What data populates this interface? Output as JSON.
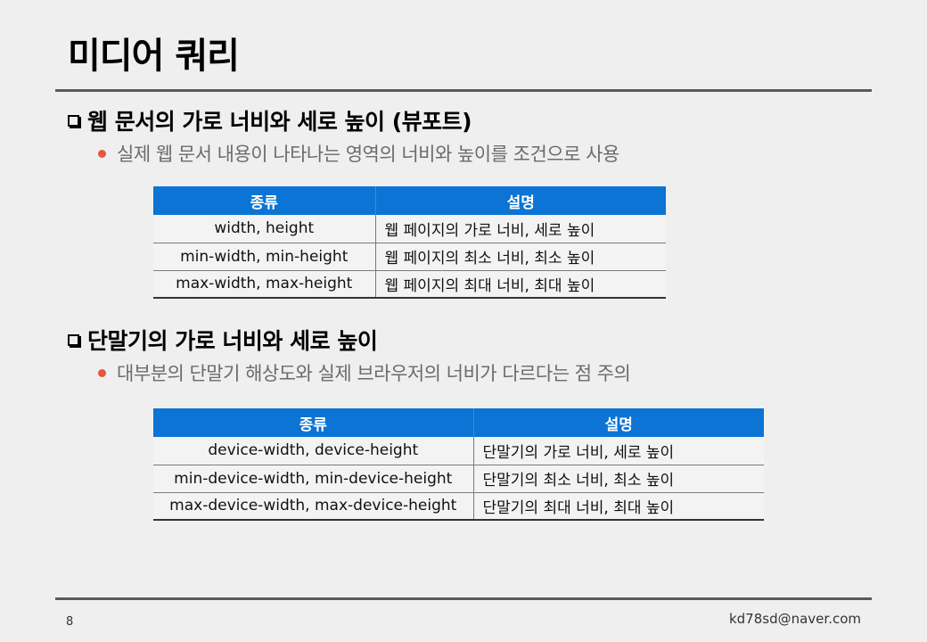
{
  "title": "미디어 쿼리",
  "section1": {
    "heading": "웹 문서의 가로 너비와 세로 높이 (뷰포트)",
    "bullet": "실제 웹 문서 내용이 나타나는 영역의 너비와 높이를 조건으로 사용",
    "table": {
      "headers": [
        "종류",
        "설명"
      ],
      "rows": [
        [
          "width, height",
          "웹 페이지의 가로 너비, 세로 높이"
        ],
        [
          "min-width, min-height",
          "웹 페이지의 최소 너비, 최소 높이"
        ],
        [
          "max-width, max-height",
          "웹 페이지의 최대 너비, 최대 높이"
        ]
      ]
    }
  },
  "section2": {
    "heading": "단말기의 가로 너비와 세로 높이",
    "bullet": "대부분의 단말기 해상도와 실제 브라우저의 너비가 다르다는 점 주의",
    "table": {
      "headers": [
        "종류",
        "설명"
      ],
      "rows": [
        [
          "device-width, device-height",
          "단말기의 가로 너비, 세로 높이"
        ],
        [
          "min-device-width, min-device-height",
          "단말기의 최소 너비, 최소 높이"
        ],
        [
          "max-device-width, max-device-height",
          "단말기의 최대 너비, 최대 높이"
        ]
      ]
    }
  },
  "footer": {
    "page_number": "8",
    "email": "kd78sd@naver.com"
  },
  "colors": {
    "header_blue": "#0b74d4",
    "bullet_dot": "#e4573c"
  }
}
